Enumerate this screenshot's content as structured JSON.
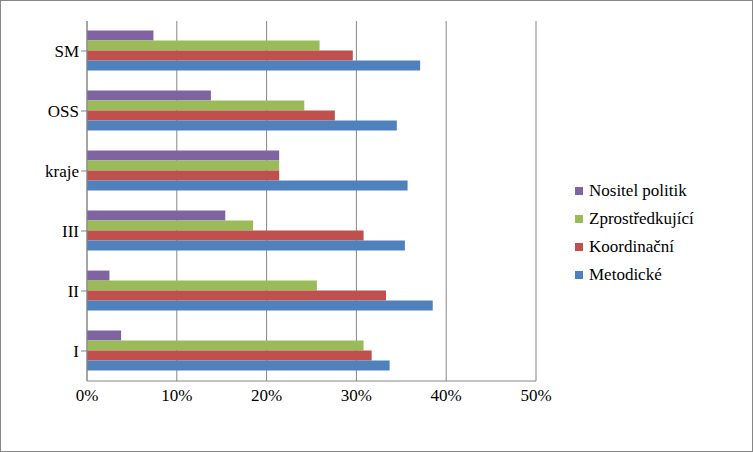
{
  "chart_data": {
    "type": "bar",
    "orientation": "horizontal",
    "categories": [
      "SM",
      "OSS",
      "kraje",
      "III",
      "II",
      "I"
    ],
    "series": [
      {
        "name": "Nositel politik",
        "color": "#8064a2",
        "values": [
          7.4,
          13.8,
          21.4,
          15.4,
          2.5,
          3.8
        ]
      },
      {
        "name": "Zprostředkující",
        "color": "#9bbb59",
        "values": [
          25.9,
          24.2,
          21.4,
          18.5,
          25.6,
          30.8
        ]
      },
      {
        "name": "Koordinační",
        "color": "#c0504d",
        "values": [
          29.6,
          27.6,
          21.4,
          30.8,
          33.3,
          31.7
        ]
      },
      {
        "name": "Metodické",
        "color": "#4f81bd",
        "values": [
          37.1,
          34.5,
          35.7,
          35.4,
          38.5,
          33.7
        ]
      }
    ],
    "xlim": [
      0,
      50
    ],
    "xticks": [
      {
        "value": 0,
        "label": "0%"
      },
      {
        "value": 10,
        "label": "10%"
      },
      {
        "value": 20,
        "label": "20%"
      },
      {
        "value": 30,
        "label": "30%"
      },
      {
        "value": 40,
        "label": "40%"
      },
      {
        "value": 50,
        "label": "50%"
      }
    ],
    "grid": true,
    "legend": "right"
  }
}
